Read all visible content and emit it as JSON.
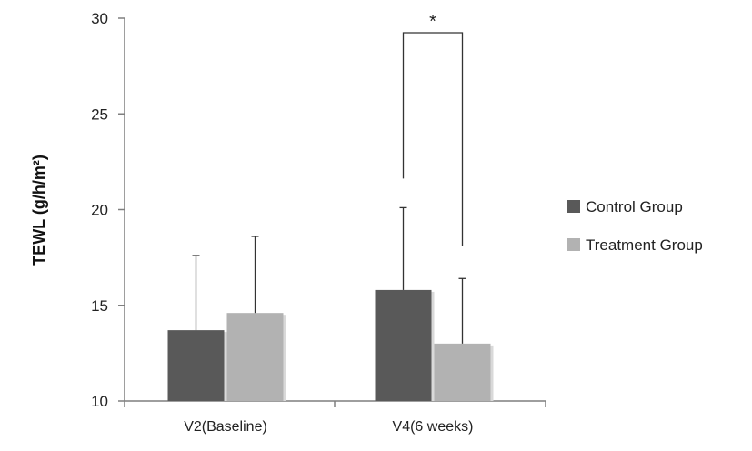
{
  "chart_data": {
    "type": "bar",
    "title": "",
    "xlabel": "",
    "ylabel": "TEWL  (g/h/m²)",
    "ylim": [
      10,
      30
    ],
    "yticks": [
      10,
      15,
      20,
      25,
      30
    ],
    "categories": [
      "V2(Baseline)",
      "V4(6 weeks)"
    ],
    "series": [
      {
        "name": "Control Group",
        "color": "#595959",
        "values": [
          13.7,
          15.8
        ],
        "error_upper": [
          3.9,
          4.3
        ]
      },
      {
        "name": "Treatment Group",
        "color": "#b2b2b2",
        "values": [
          14.6,
          13.0
        ],
        "error_upper": [
          4.0,
          3.4
        ]
      }
    ],
    "error_bars": "upper-only",
    "grid": false,
    "legend": {
      "position": "right"
    },
    "annotations": [
      {
        "type": "significance-bracket",
        "category": "V4(6 weeks)",
        "label": "*"
      }
    ]
  }
}
